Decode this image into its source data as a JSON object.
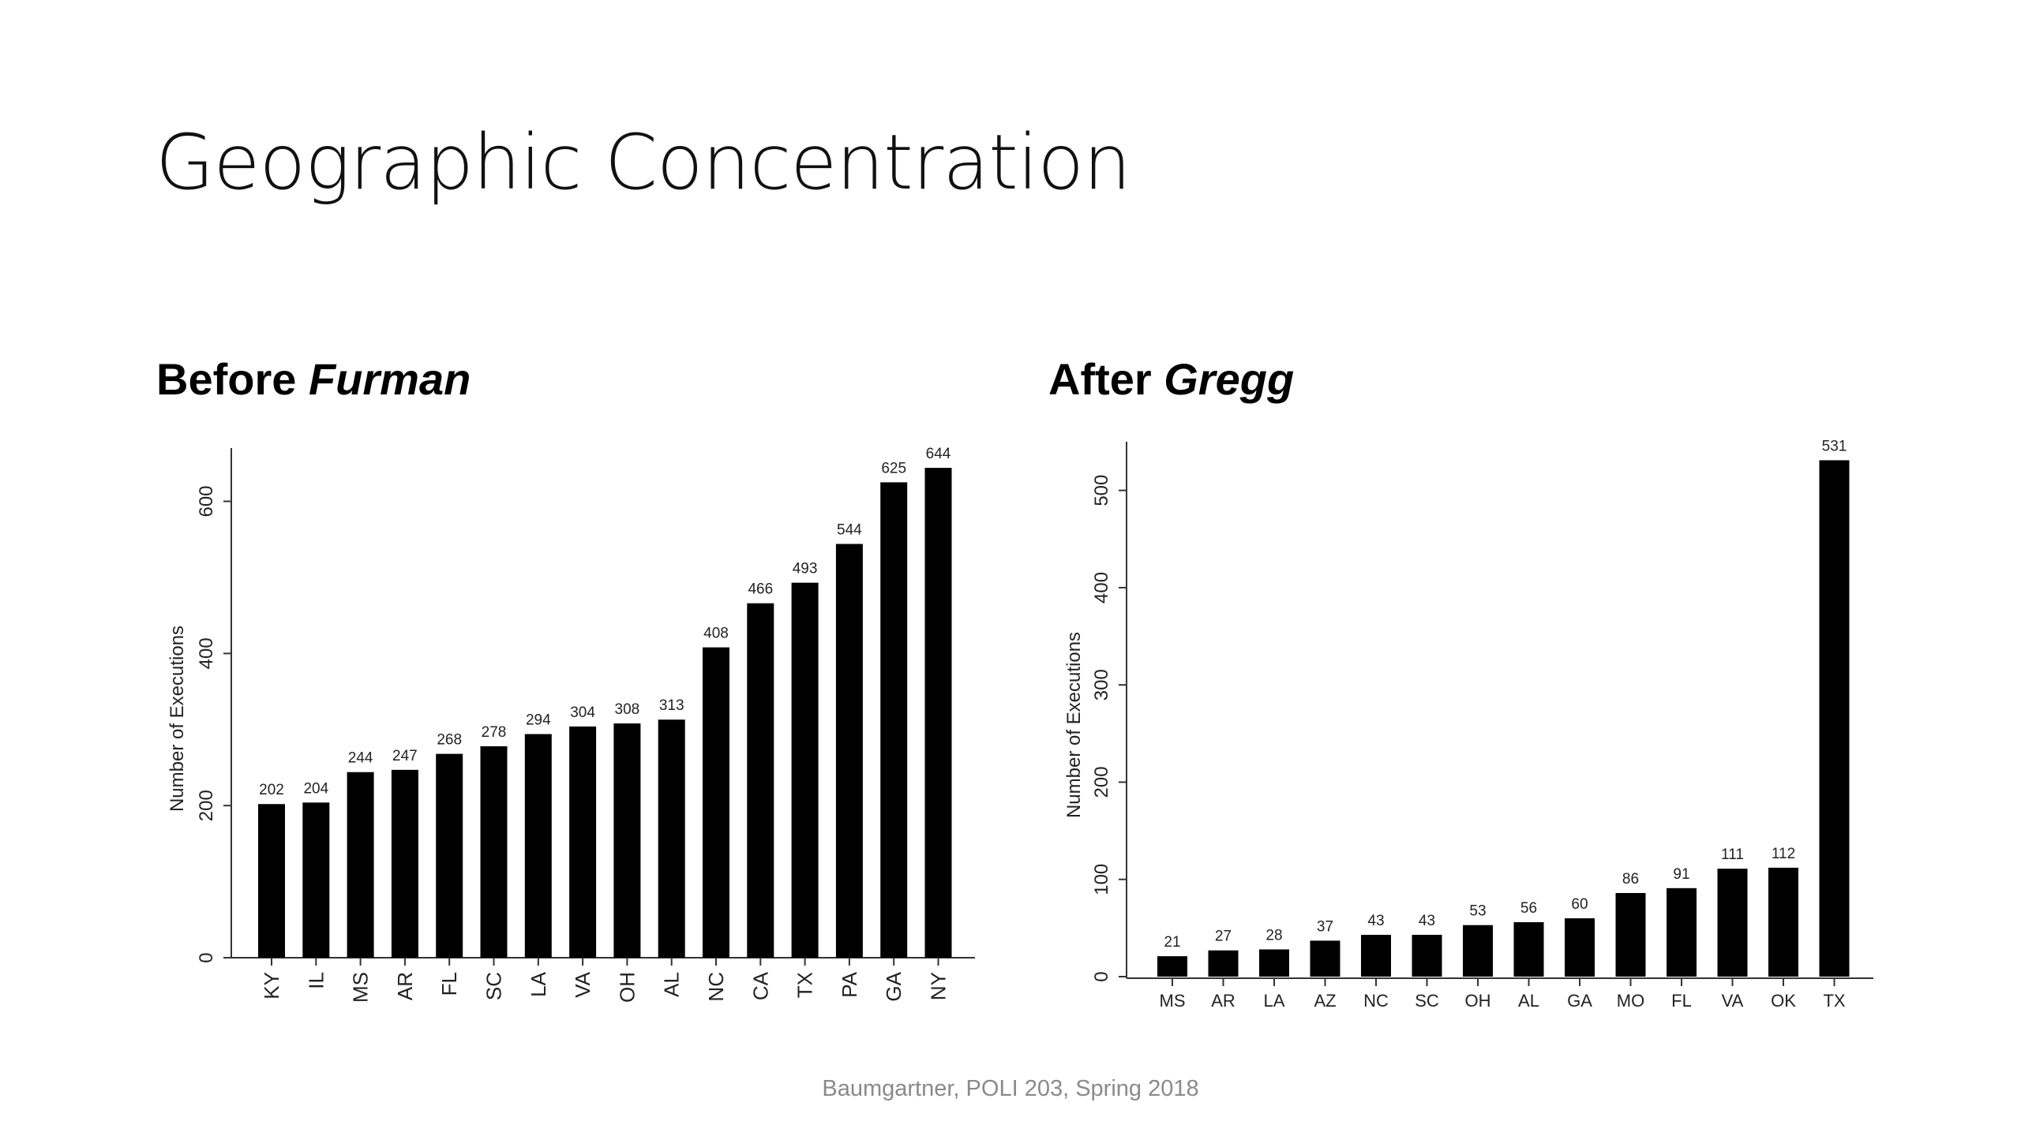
{
  "slide": {
    "title": "Geographic Concentration",
    "footer": "Baumgartner, POLI 203, Spring 2018"
  },
  "panels": {
    "left": {
      "title_plain": "Before ",
      "title_italic": "Furman"
    },
    "right": {
      "title_plain": "After ",
      "title_italic": "Gregg"
    }
  },
  "chart_data": [
    {
      "type": "bar",
      "categories": [
        "KY",
        "IL",
        "MS",
        "AR",
        "FL",
        "SC",
        "LA",
        "VA",
        "OH",
        "AL",
        "NC",
        "CA",
        "TX",
        "PA",
        "GA",
        "NY"
      ],
      "values": [
        202,
        204,
        244,
        247,
        268,
        278,
        294,
        304,
        308,
        313,
        408,
        466,
        493,
        544,
        625,
        644
      ],
      "title": "Before Furman",
      "xlabel": "",
      "ylabel": "Number of Executions",
      "ylim": [
        0,
        670
      ],
      "yticks": [
        0,
        200,
        400,
        600
      ],
      "data_labels": true,
      "grid": false,
      "bar_color": "#000000",
      "xtick_rotation": "vertical"
    },
    {
      "type": "bar",
      "categories": [
        "MS",
        "AR",
        "LA",
        "AZ",
        "NC",
        "SC",
        "OH",
        "AL",
        "GA",
        "MO",
        "FL",
        "VA",
        "OK",
        "TX"
      ],
      "values": [
        21,
        27,
        28,
        37,
        43,
        43,
        53,
        56,
        60,
        86,
        91,
        111,
        112,
        531
      ],
      "title": "After Gregg",
      "xlabel": "",
      "ylabel": "Number of Executions",
      "ylim": [
        0,
        550
      ],
      "yticks": [
        0,
        100,
        200,
        300,
        400,
        500
      ],
      "data_labels": true,
      "grid": false,
      "bar_color": "#000000",
      "xtick_rotation": "horizontal"
    }
  ]
}
